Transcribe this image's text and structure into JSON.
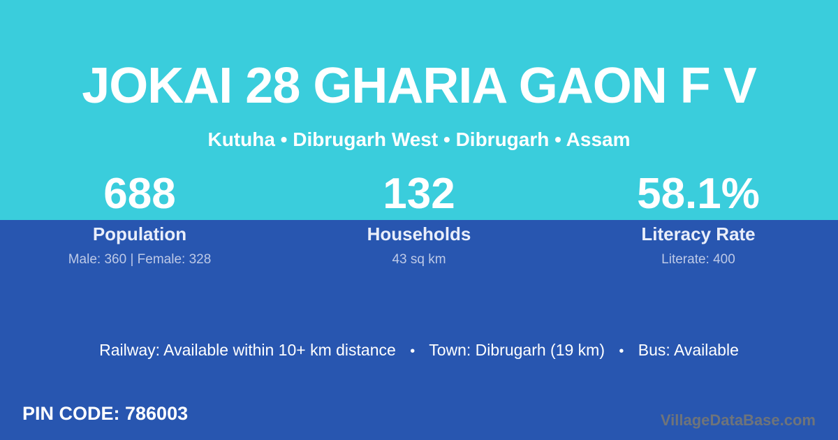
{
  "header": {
    "title": "JOKAI 28 GHARIA GAON F V",
    "subtitle": "Kutuha • Dibrugarh West • Dibrugarh • Assam"
  },
  "stats": [
    {
      "value": "688",
      "label": "Population",
      "detail": "Male: 360 | Female: 328"
    },
    {
      "value": "132",
      "label": "Households",
      "detail": "43 sq km"
    },
    {
      "value": "58.1%",
      "label": "Literacy Rate",
      "detail": "Literate: 400"
    }
  ],
  "transport": {
    "railway": "Railway: Available within 10+ km distance",
    "town": "Town: Dibrugarh (19 km)",
    "bus": "Bus: Available",
    "separator": "•"
  },
  "footer": {
    "pin_code": "PIN CODE: 786003",
    "watermark": "VillageDataBase.com"
  },
  "colors": {
    "top_background": "#3acddc",
    "bottom_background": "#2856b0",
    "text_primary": "#ffffff",
    "text_label": "#e9eefa",
    "text_secondary": "#bdc9e7",
    "watermark": "#6f747a"
  }
}
